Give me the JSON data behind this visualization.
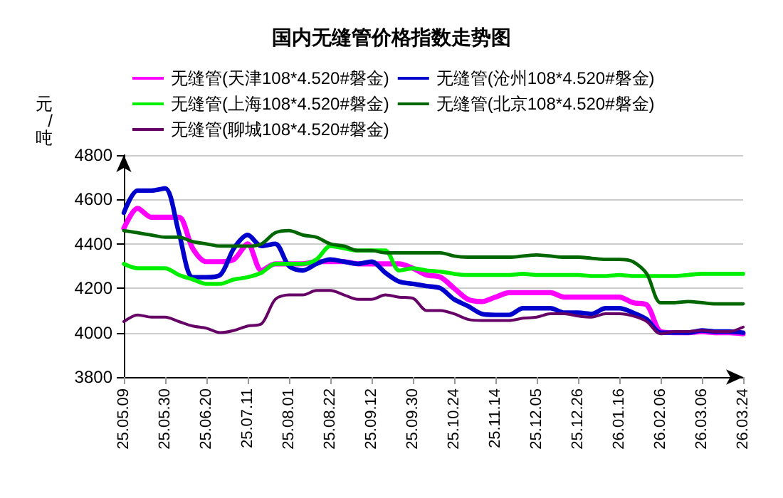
{
  "chart_data": {
    "type": "line",
    "title": "国内无缝管价格指数走势图",
    "ylabel": "元/吨",
    "categories": [
      "25.05.09",
      null,
      null,
      "25.05.30",
      null,
      null,
      "25.06.20",
      null,
      null,
      "25.07.11",
      null,
      null,
      "25.08.01",
      null,
      null,
      "25.08.22",
      null,
      null,
      "25.09.12",
      null,
      null,
      "25.09.30",
      null,
      null,
      "25.10.24",
      null,
      null,
      "25.11.14",
      null,
      null,
      "25.12.05",
      null,
      null,
      "25.12.26",
      null,
      null,
      "26.01.16",
      null,
      null,
      "26.02.06",
      null,
      null,
      "26.03.06",
      null,
      null,
      "26.03.24"
    ],
    "series": [
      {
        "name": "无缝管(天津108*4.520#磐金)",
        "color": "#ff00ff",
        "values": [
          4470,
          4560,
          4520,
          4520,
          4520,
          4380,
          4320,
          4320,
          4330,
          4400,
          4280,
          4310,
          4310,
          4310,
          4320,
          4320,
          4320,
          4310,
          4310,
          4310,
          4310,
          4290,
          4260,
          4250,
          4200,
          4150,
          4140,
          4160,
          4180,
          4180,
          4180,
          4180,
          4160,
          4160,
          4160,
          4160,
          4160,
          4135,
          4125,
          4005,
          4000,
          4000,
          4005,
          4000,
          4000,
          3995
        ]
      },
      {
        "name": "无缝管(沧州108*4.520#磐金)",
        "color": "#0000cc",
        "values": [
          4540,
          4640,
          4640,
          4650,
          4450,
          4250,
          4250,
          4260,
          4380,
          4440,
          4390,
          4400,
          4300,
          4280,
          4310,
          4330,
          4320,
          4310,
          4320,
          4270,
          4230,
          4220,
          4210,
          4200,
          4150,
          4120,
          4085,
          4080,
          4080,
          4110,
          4110,
          4110,
          4090,
          4090,
          4085,
          4110,
          4110,
          4090,
          4060,
          4000,
          4000,
          4000,
          4010,
          4005,
          4005,
          4000
        ]
      },
      {
        "name": "无缝管(上海108*4.520#磐金)",
        "color": "#00ee00",
        "values": [
          4310,
          4290,
          4290,
          4290,
          4260,
          4240,
          4220,
          4220,
          4240,
          4250,
          4270,
          4310,
          4310,
          4310,
          4330,
          4390,
          4380,
          4370,
          4370,
          4370,
          4280,
          4290,
          4280,
          4275,
          4265,
          4260,
          4260,
          4260,
          4260,
          4265,
          4260,
          4260,
          4260,
          4260,
          4255,
          4255,
          4260,
          4255,
          4255,
          4255,
          4255,
          4260,
          4265,
          4265,
          4265,
          4265
        ]
      },
      {
        "name": "无缝管(北京108*4.520#磐金)",
        "color": "#006600",
        "values": [
          4460,
          4450,
          4440,
          4430,
          4430,
          4410,
          4400,
          4390,
          4390,
          4390,
          4400,
          4450,
          4460,
          4440,
          4430,
          4400,
          4390,
          4370,
          4370,
          4360,
          4360,
          4360,
          4360,
          4360,
          4345,
          4340,
          4340,
          4340,
          4340,
          4345,
          4350,
          4345,
          4340,
          4340,
          4335,
          4330,
          4330,
          4320,
          4265,
          4135,
          4135,
          4140,
          4135,
          4130,
          4130,
          4130
        ]
      },
      {
        "name": "无缝管(聊城108*4.520#磐金)",
        "color": "#660066",
        "values": [
          4050,
          4080,
          4070,
          4070,
          4050,
          4030,
          4020,
          4000,
          4010,
          4030,
          4040,
          4150,
          4170,
          4170,
          4190,
          4190,
          4170,
          4150,
          4150,
          4170,
          4160,
          4155,
          4100,
          4100,
          4085,
          4060,
          4055,
          4055,
          4055,
          4065,
          4070,
          4085,
          4085,
          4075,
          4070,
          4085,
          4085,
          4075,
          4050,
          3995,
          4005,
          4005,
          4010,
          4005,
          4005,
          4025
        ]
      }
    ],
    "ylim": [
      3800,
      4800
    ],
    "yticks": [
      3800,
      4000,
      4200,
      4400,
      4600,
      4800
    ],
    "grid": "y",
    "legend": "top",
    "marker": "none",
    "line_style": "solid"
  }
}
